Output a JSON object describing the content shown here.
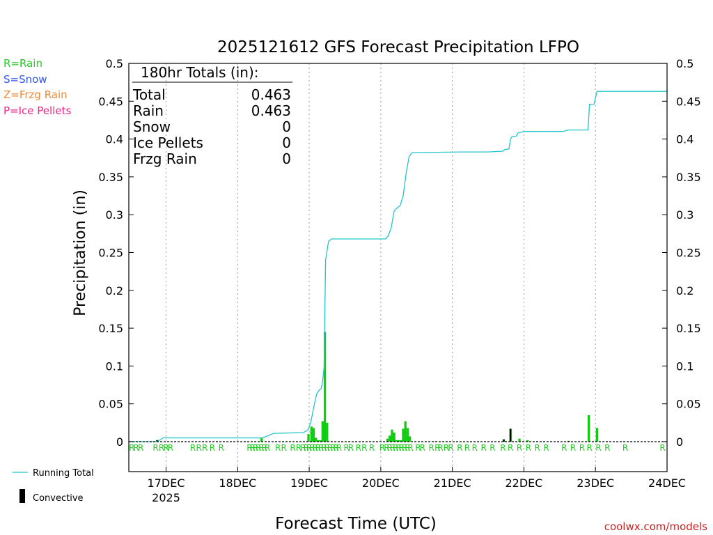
{
  "chart_data": {
    "type": "bar",
    "title": "2025121612 GFS Forecast Precipitation LFPO",
    "ylabel": "Precipitation  (in)",
    "xlabel": "Forecast Time (UTC)",
    "watermark": "coolwx.com/models",
    "ylim": [
      0,
      0.5
    ],
    "xlim_hours": [
      -0.5,
      180
    ],
    "y_ticks": [
      0,
      0.05,
      0.1,
      0.15,
      0.2,
      0.25,
      0.3,
      0.35,
      0.4,
      0.45,
      0.5
    ],
    "y_tick_labels": [
      "0",
      "0.05",
      "0.1",
      "0.15",
      "0.2",
      "0.25",
      "0.3",
      "0.35",
      "0.4",
      "0.45",
      "0.5"
    ],
    "x_ticks": [
      {
        "hour": 12,
        "label": "17DEC",
        "sublabel": "2025"
      },
      {
        "hour": 36,
        "label": "18DEC",
        "sublabel": ""
      },
      {
        "hour": 60,
        "label": "19DEC",
        "sublabel": ""
      },
      {
        "hour": 84,
        "label": "20DEC",
        "sublabel": ""
      },
      {
        "hour": 108,
        "label": "21DEC",
        "sublabel": ""
      },
      {
        "hour": 132,
        "label": "22DEC",
        "sublabel": ""
      },
      {
        "hour": 156,
        "label": "23DEC",
        "sublabel": ""
      },
      {
        "hour": 180,
        "label": "24DEC",
        "sublabel": ""
      }
    ],
    "type_legend": [
      {
        "label": "R=Rain",
        "color": "#22cc22"
      },
      {
        "label": "S=Snow",
        "color": "#3355ee"
      },
      {
        "label": "Z=Frzg Rain",
        "color": "#ee8833"
      },
      {
        "label": "P=Ice Pellets",
        "color": "#ee2288"
      }
    ],
    "series_legend": [
      {
        "label": "Running Total",
        "kind": "line",
        "color": "#22c5cc"
      },
      {
        "label": "Convective",
        "kind": "bar",
        "color": "#000000"
      }
    ],
    "totals": {
      "header": "180hr Totals (in):",
      "rows": [
        {
          "label": "Total",
          "value": "0.463"
        },
        {
          "label": "Rain",
          "value": "0.463"
        },
        {
          "label": "Snow",
          "value": "0"
        },
        {
          "label": "Ice Pellets",
          "value": "0"
        },
        {
          "label": "Frzg Rain",
          "value": "0"
        }
      ]
    },
    "precip_bars": [
      {
        "hour": 9,
        "value": 0.002
      },
      {
        "hour": 44,
        "value": 0.005
      },
      {
        "hour": 59.75,
        "value": 0.01
      },
      {
        "hour": 60.75,
        "value": 0.02
      },
      {
        "hour": 61.5,
        "value": 0.018
      },
      {
        "hour": 62.25,
        "value": 0.005
      },
      {
        "hour": 63,
        "value": 0.002
      },
      {
        "hour": 63.75,
        "value": 0.002
      },
      {
        "hour": 64.5,
        "value": 0.027
      },
      {
        "hour": 65.25,
        "value": 0.145
      },
      {
        "hour": 66,
        "value": 0.025
      },
      {
        "hour": 86.25,
        "value": 0.004
      },
      {
        "hour": 87,
        "value": 0.008
      },
      {
        "hour": 87.75,
        "value": 0.016
      },
      {
        "hour": 88.5,
        "value": 0.012
      },
      {
        "hour": 89.25,
        "value": 0.002
      },
      {
        "hour": 90,
        "value": 0.002
      },
      {
        "hour": 90.75,
        "value": 0.002
      },
      {
        "hour": 91.5,
        "value": 0.017
      },
      {
        "hour": 92.25,
        "value": 0.027
      },
      {
        "hour": 93,
        "value": 0.018
      },
      {
        "hour": 93.75,
        "value": 0.007
      },
      {
        "hour": 125.25,
        "value": 0.003
      },
      {
        "hour": 127.5,
        "value": 0.017
      },
      {
        "hour": 130.5,
        "value": 0.004
      },
      {
        "hour": 133.25,
        "value": 0.002
      },
      {
        "hour": 147,
        "value": 0.001
      },
      {
        "hour": 153.75,
        "value": 0.035
      },
      {
        "hour": 156.5,
        "value": 0.018
      }
    ],
    "convective_bars": [
      {
        "hour": 9,
        "value": 0.002
      },
      {
        "hour": 125.25,
        "value": 0.003
      },
      {
        "hour": 127.5,
        "value": 0.017
      },
      {
        "hour": 147,
        "value": 0.001
      }
    ],
    "running_total": [
      [
        -0.5,
        0.0
      ],
      [
        9,
        0.0
      ],
      [
        11,
        0.005
      ],
      [
        44,
        0.005
      ],
      [
        45,
        0.006
      ],
      [
        48,
        0.011
      ],
      [
        58,
        0.012
      ],
      [
        59.5,
        0.015
      ],
      [
        60.5,
        0.025
      ],
      [
        61.5,
        0.045
      ],
      [
        62.5,
        0.063
      ],
      [
        63.5,
        0.069
      ],
      [
        64,
        0.07
      ],
      [
        64.5,
        0.08
      ],
      [
        65,
        0.099
      ],
      [
        65.5,
        0.24
      ],
      [
        66.5,
        0.265
      ],
      [
        67.5,
        0.268
      ],
      [
        85.5,
        0.268
      ],
      [
        86.5,
        0.272
      ],
      [
        87.5,
        0.283
      ],
      [
        88.5,
        0.305
      ],
      [
        89.5,
        0.309
      ],
      [
        90.5,
        0.312
      ],
      [
        91.5,
        0.325
      ],
      [
        92.5,
        0.355
      ],
      [
        93.5,
        0.377
      ],
      [
        94.5,
        0.382
      ],
      [
        111.5,
        0.383
      ],
      [
        120,
        0.383
      ],
      [
        125,
        0.384
      ],
      [
        125.5,
        0.386
      ],
      [
        127,
        0.387
      ],
      [
        127.5,
        0.4
      ],
      [
        128,
        0.403
      ],
      [
        129.5,
        0.404
      ],
      [
        130,
        0.408
      ],
      [
        131,
        0.409
      ],
      [
        132,
        0.41
      ],
      [
        145,
        0.41
      ],
      [
        147,
        0.412
      ],
      [
        153.5,
        0.412
      ],
      [
        154,
        0.446
      ],
      [
        155.5,
        0.446
      ],
      [
        156.5,
        0.463
      ],
      [
        180,
        0.463
      ]
    ],
    "type_markers": {
      "symbol": "R",
      "hours": [
        0.5,
        2,
        3.5,
        8.5,
        10.5,
        12,
        13.5,
        21,
        23,
        25,
        27.5,
        30.5,
        40,
        41,
        42,
        43,
        44,
        45,
        46,
        49.5,
        51.5,
        54.5,
        56.5,
        58,
        59,
        60,
        61,
        62,
        63,
        64,
        65,
        66,
        67,
        68,
        69,
        70,
        72.5,
        74,
        76.5,
        78.5,
        81,
        84.5,
        86,
        87,
        88,
        89,
        90,
        91,
        92,
        93,
        94,
        96.5,
        98,
        101,
        103,
        104,
        106,
        107.5,
        110.5,
        113,
        115.5,
        118.5,
        121.5,
        125,
        127.5,
        130.5,
        133.5,
        136.5,
        139.5,
        145.5,
        148.5,
        151.5,
        154,
        157,
        160,
        166,
        178.5
      ]
    }
  }
}
